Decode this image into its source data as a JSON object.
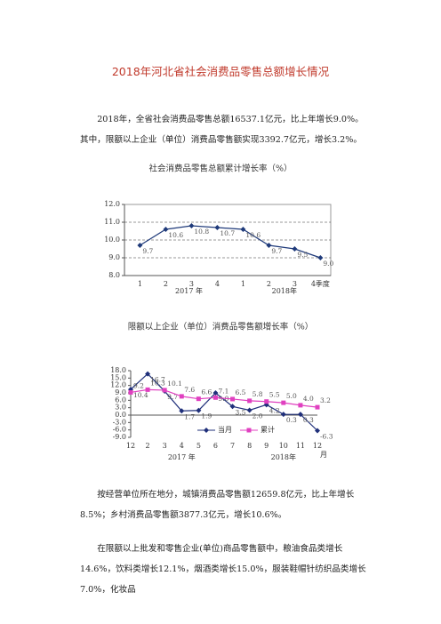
{
  "title": "2018年河北省社会消费品零售总额增长情况",
  "paragraphs": [
    "2018年，全省社会消费品零售总额16537.1亿元，比上年增长9.0%。其中，限额以上企业（单位）消费品零售额实现3392.7亿元，增长3.2%。",
    "按经营单位所在地分，城镇消费品零售额12659.8亿元，比上年增长8.5%；乡村消费品零售额3877.3亿元，增长10.6%。",
    "在限额以上批发和零售企业(单位)商品零售额中，粮油食品类增长14.6%，饮料类增长12.1%，烟酒类增长15.0%，服装鞋帽针纺织品类增长7.0%，化妆品"
  ],
  "chart_data": [
    {
      "type": "line",
      "title": "社会消费品零售总额累计增长率（%）",
      "categories": [
        "1",
        "2",
        "3",
        "4",
        "1",
        "2",
        "3",
        "4季度"
      ],
      "group_labels": [
        "2017 年",
        "2018年"
      ],
      "values": [
        9.7,
        10.6,
        10.8,
        10.7,
        10.6,
        9.7,
        9.5,
        9.0
      ],
      "value_labels": [
        "9.7",
        "10.6",
        "10.8",
        "10.7",
        "10.6",
        "9.7",
        "9.5",
        "9.0"
      ],
      "color": "#1f3a7a",
      "marker": "diamond",
      "ylim": [
        8,
        12
      ],
      "yticks": [
        {
          "value": 8,
          "label": "8.0"
        },
        {
          "value": 9,
          "label": "9.0"
        },
        {
          "value": 10,
          "label": "10.0"
        },
        {
          "value": 11,
          "label": "11.0"
        },
        {
          "value": 12,
          "label": "12.0"
        }
      ],
      "grid": true
    },
    {
      "type": "line",
      "title": "限额以上企业（单位）消费品零售额增长率（%）",
      "categories": [
        "12",
        "2",
        "3",
        "4",
        "5",
        "6",
        "7",
        "8",
        "9",
        "10",
        "11",
        "12"
      ],
      "x_unit": "月",
      "group_labels": [
        "2017 年",
        "2018年"
      ],
      "series": [
        {
          "name": "当月",
          "color": "#1f2f7a",
          "marker": "diamond",
          "values": [
            10.4,
            16.7,
            9.7,
            1.7,
            1.9,
            9.0,
            3.5,
            2.0,
            4.2,
            0.3,
            0.3,
            -6.3
          ],
          "value_labels": [
            "10.4",
            "16.7",
            "9.7",
            "1.7",
            "1.9",
            "9.0",
            "3.5",
            "2.0",
            "4.2",
            "0.3",
            "0.3",
            "-6.3"
          ]
        },
        {
          "name": "累计",
          "color": "#e040c0",
          "marker": "square",
          "values": [
            9.2,
            10.3,
            10.1,
            7.6,
            6.6,
            7.1,
            6.5,
            5.8,
            5.5,
            5.0,
            4.0,
            3.2
          ],
          "value_labels": [
            "9.2",
            "10.3",
            "10.1",
            "7.6",
            "6.6",
            "7.1",
            "6.5",
            "5.8",
            "5.5",
            "5.0",
            "4.0",
            "3.2"
          ]
        }
      ],
      "ylim": [
        -9,
        18
      ],
      "yticks": [
        {
          "value": -9,
          "label": "-9.0"
        },
        {
          "value": -6,
          "label": "-6.0"
        },
        {
          "value": -3,
          "label": "-3.0"
        },
        {
          "value": 0,
          "label": "0.0"
        },
        {
          "value": 3,
          "label": "3.0"
        },
        {
          "value": 6,
          "label": "6.0"
        },
        {
          "value": 9,
          "label": "9.0"
        },
        {
          "value": 12,
          "label": "12.0"
        },
        {
          "value": 15,
          "label": "15.0"
        },
        {
          "value": 18,
          "label": "18.0"
        }
      ],
      "grid": false,
      "legend": "bottom"
    }
  ]
}
